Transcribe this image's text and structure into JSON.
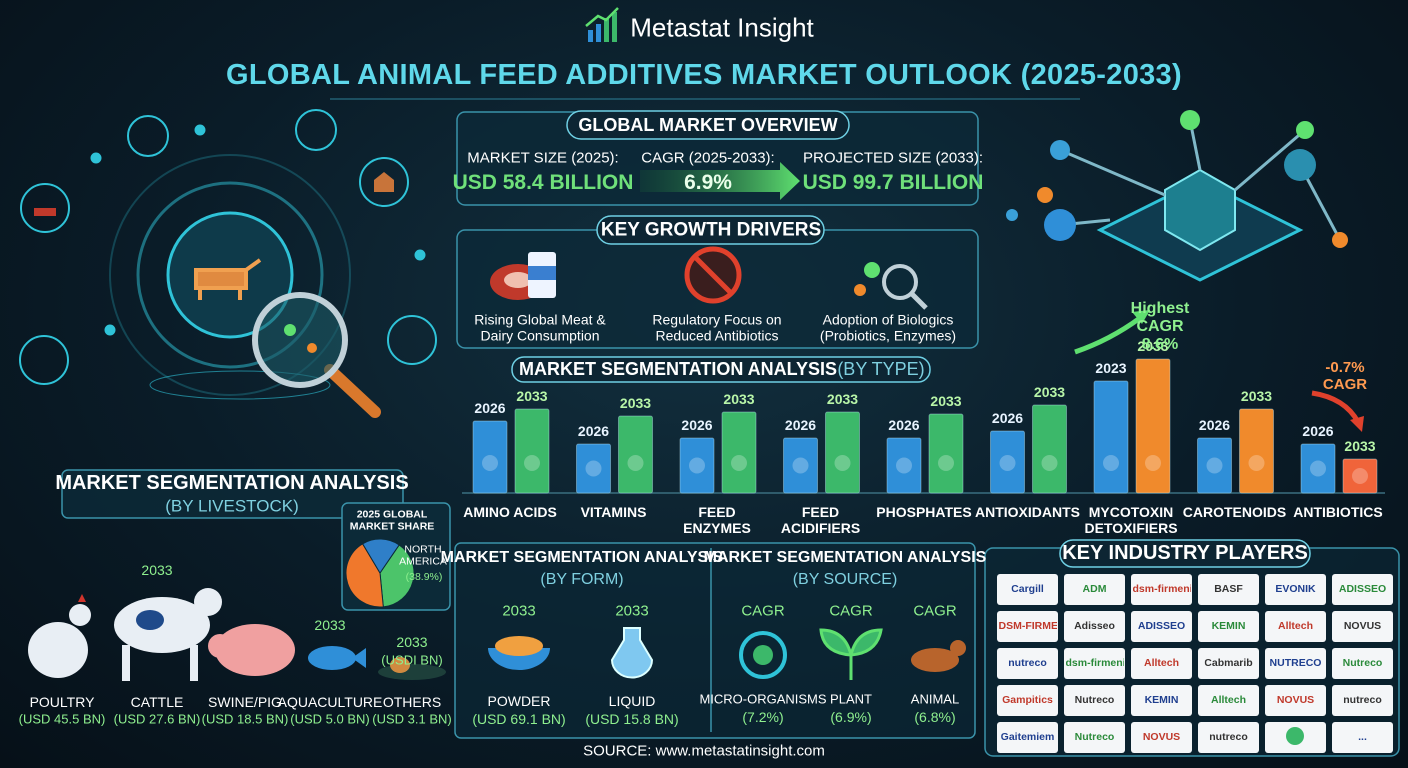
{
  "header": {
    "brand": "Metastat Insight",
    "title": "GLOBAL ANIMAL FEED ADDITIVES MARKET OUTLOOK (2025-2033)"
  },
  "overview": {
    "title": "GLOBAL MARKET OVERVIEW",
    "metrics": [
      {
        "label": "MARKET SIZE (2025):",
        "value": "USD 58.4 BILLION"
      },
      {
        "label": "CAGR (2025-2033):",
        "value": "6.9%"
      },
      {
        "label": "PROJECTED SIZE (2033):",
        "value": "USD 99.7 BILLION"
      }
    ]
  },
  "drivers": {
    "title": "KEY GROWTH DRIVERS",
    "items": [
      "Rising Global Meat &\nDairy Consumption",
      "Regulatory Focus on\nReduced Antibiotics",
      "Adoption of Biologics\n(Probiotics, Enzymes)"
    ]
  },
  "by_type": {
    "title": "MARKET SEGMENTATION ANALYSIS",
    "subtitle": "(BY TYPE)",
    "categories": [
      "AMINO ACIDS",
      "VITAMINS",
      "FEED\nENZYMES",
      "FEED\nACIDIFIERS",
      "PHOSPHATES",
      "ANTIOXIDANTS",
      "MYCOTOXIN\nDETOXIFIERS",
      "CAROTENOIDS",
      "ANTIBIOTICS"
    ],
    "series": [
      {
        "labels": [
          "2026",
          "2026",
          "2026",
          "2026",
          "2026",
          "2026",
          "2023",
          "2026",
          "2026"
        ],
        "colors": [
          "#2f8fd8",
          "#2f8fd8",
          "#2f8fd8",
          "#2f8fd8",
          "#2f8fd8",
          "#2f8fd8",
          "#2f8fd8",
          "#2f8fd8",
          "#2f8fd8"
        ],
        "values": [
          72,
          49,
          55,
          55,
          55,
          62,
          112,
          55,
          49
        ]
      },
      {
        "labels": [
          "2033",
          "2033",
          "2033",
          "2033",
          "2033",
          "2033",
          "2033",
          "2033",
          "2033"
        ],
        "colors": [
          "#3cb86a",
          "#3cb86a",
          "#3cb86a",
          "#3cb86a",
          "#3cb86a",
          "#3cb86a",
          "#f08a2c",
          "#f08a2c",
          "#f0643a"
        ],
        "values": [
          84,
          77,
          81,
          81,
          79,
          88,
          134,
          84,
          34
        ]
      }
    ],
    "annotations": [
      "Highest\nCAGR\n8.6%",
      "-0.7%\nCAGR"
    ]
  },
  "by_livestock": {
    "title": "MARKET SEGMENTATION ANALYSIS",
    "subtitle": "(BY LIVESTOCK)",
    "items": [
      {
        "name": "POULTRY",
        "value": "(USD 45.5 BN)"
      },
      {
        "name": "CATTLE",
        "value": "(USD 27.6 BN)",
        "year": "2033"
      },
      {
        "name": "SWINE/PIG",
        "value": "(USD 18.5 BN)"
      },
      {
        "name": "AQUACULTURE",
        "value": "(USD 5.0 BN)",
        "year": "2033"
      },
      {
        "name": "OTHERS",
        "value": "(USD 3.1 BN)",
        "year": "2033",
        "note": "(USDI BN)"
      }
    ],
    "pie": {
      "title": "2025 GLOBAL\nMARKET SHARE",
      "label": "NORTH\nAMERICA",
      "value_label": "(38.9%)",
      "values": [
        38.9,
        43,
        18.1
      ],
      "colors": [
        "#4cc46a",
        "#f0782c",
        "#2f7fc8"
      ]
    }
  },
  "by_form": {
    "title": "MARKET SEGMENTATION ANALYSIS",
    "subtitle": "(BY FORM)",
    "items": [
      {
        "year": "2033",
        "name": "POWDER",
        "value": "(USD 69.1 BN)"
      },
      {
        "year": "2033",
        "name": "LIQUID",
        "value": "(USD 15.8 BN)"
      }
    ]
  },
  "by_source": {
    "title": "MARKET SEGMENTATION ANALYSIS",
    "subtitle": "(BY SOURCE)",
    "items": [
      {
        "label": "CAGR",
        "name": "MICRO-ORGANISMS",
        "value": "(7.2%)"
      },
      {
        "label": "CAGR",
        "name": "PLANT",
        "value": "(6.9%)"
      },
      {
        "label": "CAGR",
        "name": "ANIMAL",
        "value": "(6.8%)"
      }
    ]
  },
  "players": {
    "title": "KEY INDUSTRY PLAYERS",
    "cells": [
      "Cargill",
      "ADM",
      "dsm-firmenich",
      "BASF",
      "EVONIK",
      "ADISSEO",
      "DSM-FIRMENICH",
      "Adisseo",
      "ADISSEO",
      "KEMIN",
      "Alltech",
      "NOVUS",
      "nutreco",
      "dsm-firmenich",
      "Alltech",
      "Cabmarib",
      "NUTRECO",
      "Nutreco",
      "Gampitics",
      "Nutreco",
      "KEMIN",
      "Alltech",
      "NOVUS",
      "nutreco",
      "Gaitemiem",
      "Nutreco",
      "NOVUS",
      "nutreco",
      "..."
    ]
  },
  "source": "SOURCE: www.metastatinsight.com"
}
